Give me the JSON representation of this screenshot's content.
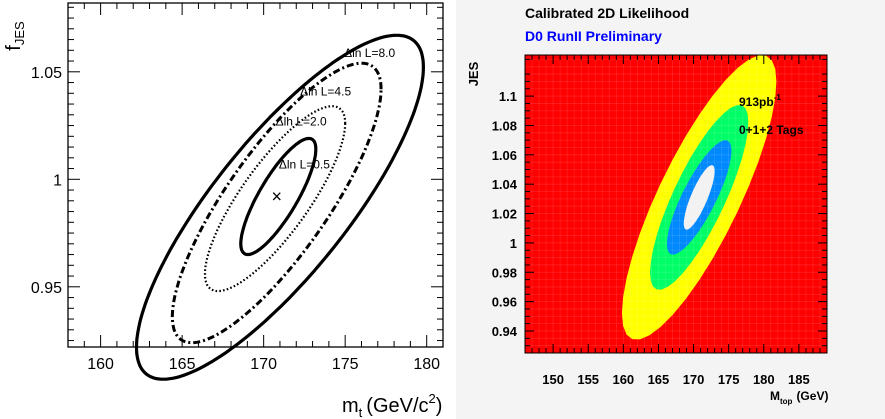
{
  "chart_data": [
    {
      "type": "contour",
      "xlabel": "m",
      "xlabel_sub": "t",
      "xlabel_unit": "(GeV/c",
      "xlabel_sup": "2",
      "xlabel_close": ")",
      "ylabel": "f",
      "ylabel_sub": "JES",
      "xlim": [
        158.0,
        181.0
      ],
      "ylim": [
        0.922,
        1.082
      ],
      "xticks": [
        160,
        165,
        170,
        175,
        180
      ],
      "xtick_labels": [
        "160",
        "165",
        "170",
        "175",
        "180"
      ],
      "yticks": [
        0.95,
        1.0,
        1.05
      ],
      "ytick_labels": [
        "0.95",
        "1",
        "1.05"
      ],
      "best_fit": {
        "x": 170.8,
        "y": 0.992,
        "marker": "×"
      },
      "contours": [
        {
          "label": "Δln L=0.5",
          "style": "solid",
          "center": [
            170.9,
            0.992
          ],
          "x_range": [
            168.6,
            173.2
          ],
          "y_range": [
            0.965,
            1.012
          ],
          "label_at": [
            172.5,
            1.005
          ]
        },
        {
          "label": "Δlh L=2.0",
          "style": "dotted",
          "center": [
            170.7,
            0.991
          ],
          "x_range": [
            166.4,
            175.0
          ],
          "y_range": [
            0.95,
            1.034
          ],
          "label_at": [
            172.3,
            1.025
          ]
        },
        {
          "label": "Δln L=4.5",
          "style": "dashdot",
          "center": [
            170.8,
            0.989
          ],
          "x_range": [
            164.4,
            177.2
          ],
          "y_range": [
            0.937,
            1.054
          ],
          "label_at": [
            173.8,
            1.039
          ]
        },
        {
          "label": "Δln L=8.0",
          "style": "solid",
          "center": [
            171.0,
            0.987
          ],
          "x_range": [
            162.2,
            179.5
          ],
          "y_range": [
            0.921,
            1.067
          ],
          "label_at": [
            176.5,
            1.057
          ]
        }
      ]
    },
    {
      "type": "heatmap",
      "title": "Calibrated 2D Likelihood",
      "subtitle": "D0 RunII Preliminary",
      "xlabel": "M",
      "xlabel_sub": "top",
      "xlabel_unit": "(GeV)",
      "ylabel": "JES",
      "xlim": [
        146.0,
        189.0
      ],
      "ylim": [
        0.925,
        1.128
      ],
      "xticks": [
        150,
        155,
        160,
        165,
        170,
        175,
        180,
        185
      ],
      "xtick_labels": [
        "150",
        "155",
        "160",
        "165",
        "170",
        "175",
        "180",
        "185"
      ],
      "yticks": [
        0.94,
        0.96,
        0.98,
        1.0,
        1.02,
        1.04,
        1.06,
        1.08,
        1.1
      ],
      "ytick_labels": [
        "0.94",
        "0.96",
        "0.98",
        "1",
        "1.02",
        "1.04",
        "1.06",
        "1.08",
        "1.1"
      ],
      "annotation_lumi": "913pb",
      "annotation_lumi_sup": "-1",
      "annotation_tags": "0+1+2 Tags",
      "center": [
        170.8,
        1.031
      ],
      "background_color": "#ff0000",
      "levels": [
        {
          "color": "#ffff00",
          "x_range": [
            159.8,
            181.8
          ],
          "y_range": [
            0.955,
            1.128
          ]
        },
        {
          "color": "#00ff66",
          "x_range": [
            163.8,
            177.8
          ],
          "y_range": [
            0.974,
            1.094
          ]
        },
        {
          "color": "#0088ff",
          "x_range": [
            166.2,
            175.4
          ],
          "y_range": [
            0.992,
            1.068
          ]
        },
        {
          "color": "#f2f2f2",
          "x_range": [
            168.6,
            173.0
          ],
          "y_range": [
            1.009,
            1.048
          ]
        }
      ]
    }
  ]
}
